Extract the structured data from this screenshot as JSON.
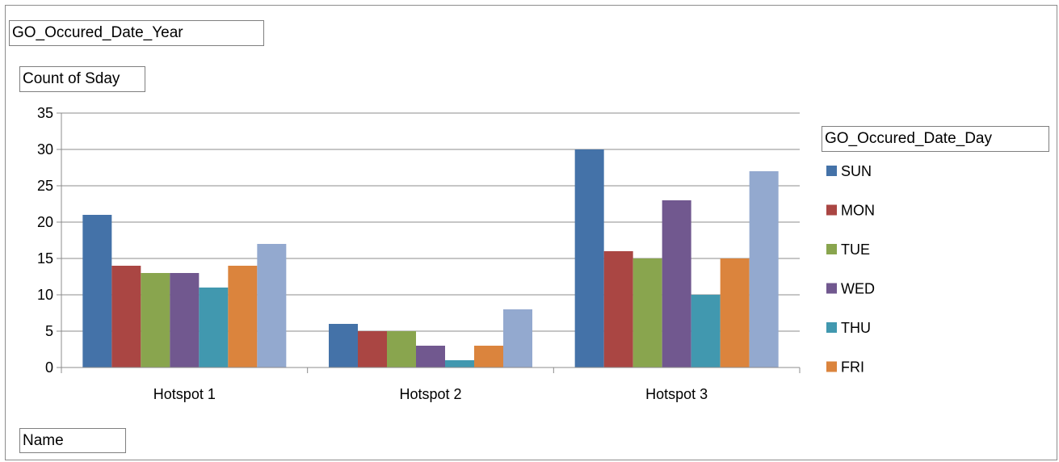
{
  "filter_field": "GO_Occured_Date_Year",
  "value_field": "Count of Sday",
  "axis_field": "Name",
  "chart_data": {
    "type": "bar",
    "title": "",
    "xlabel": "",
    "ylabel": "",
    "categories": [
      "Hotspot 1",
      "Hotspot 2",
      "Hotspot 3"
    ],
    "ylim": [
      0,
      35
    ],
    "yticks": [
      0,
      5,
      10,
      15,
      20,
      25,
      30,
      35
    ],
    "grid": true,
    "legend_title": "GO_Occured_Date_Day",
    "legend_position": "right",
    "series": [
      {
        "name": "SUN",
        "values": [
          21,
          6,
          30
        ],
        "color": "#4472A8"
      },
      {
        "name": "MON",
        "values": [
          14,
          5,
          16
        ],
        "color": "#AA4643"
      },
      {
        "name": "TUE",
        "values": [
          13,
          5,
          15
        ],
        "color": "#89A54E"
      },
      {
        "name": "WED",
        "values": [
          13,
          3,
          23
        ],
        "color": "#71588F"
      },
      {
        "name": "THU",
        "values": [
          11,
          1,
          10
        ],
        "color": "#4198AF"
      },
      {
        "name": "FRI",
        "values": [
          14,
          3,
          15
        ],
        "color": "#DB843D"
      },
      {
        "values": [
          17,
          8,
          27
        ],
        "color": "#93A9CF"
      }
    ]
  }
}
